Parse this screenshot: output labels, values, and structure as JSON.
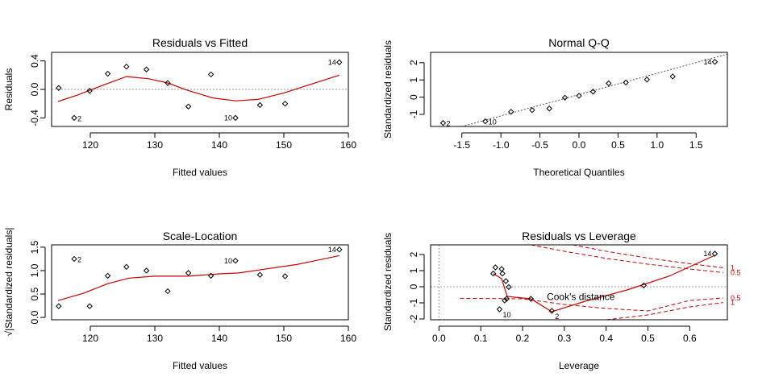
{
  "colors": {
    "smooth": "#cc0000",
    "ref": "#999999",
    "cook": "#cc0000",
    "point": "#000000"
  },
  "chart_data": [
    {
      "type": "scatter",
      "title": "Residuals vs Fitted",
      "xlabel": "Fitted values",
      "ylabel": "Residuals",
      "xlim": [
        114,
        160
      ],
      "ylim": [
        -0.52,
        0.52
      ],
      "xticks": [
        120,
        130,
        140,
        150,
        160
      ],
      "yticks": [
        -0.4,
        0.0,
        0.4
      ],
      "ytick_labels": [
        "-0.4",
        "0.0",
        "0.4"
      ],
      "refline": {
        "kind": "h",
        "value": 0
      },
      "points": [
        {
          "x": 115.1,
          "y": 0.02
        },
        {
          "x": 117.5,
          "y": -0.4
        },
        {
          "x": 119.9,
          "y": -0.02
        },
        {
          "x": 122.7,
          "y": 0.22
        },
        {
          "x": 125.6,
          "y": 0.32
        },
        {
          "x": 128.7,
          "y": 0.28
        },
        {
          "x": 132.0,
          "y": 0.09
        },
        {
          "x": 135.2,
          "y": -0.24
        },
        {
          "x": 138.7,
          "y": 0.21
        },
        {
          "x": 142.5,
          "y": -0.4
        },
        {
          "x": 146.3,
          "y": -0.22
        },
        {
          "x": 150.2,
          "y": -0.2
        },
        {
          "x": 158.6,
          "y": 0.38
        }
      ],
      "labels": [
        {
          "x": 117.5,
          "y": -0.4,
          "text": "2",
          "pos": "right"
        },
        {
          "x": 142.5,
          "y": -0.4,
          "text": "10",
          "pos": "left"
        },
        {
          "x": 158.6,
          "y": 0.38,
          "text": "14",
          "pos": "left"
        }
      ],
      "smooth": [
        [
          115,
          -0.17
        ],
        [
          118,
          -0.08
        ],
        [
          122,
          0.06
        ],
        [
          125.6,
          0.18
        ],
        [
          129,
          0.15
        ],
        [
          132,
          0.09
        ],
        [
          135,
          -0.01
        ],
        [
          139,
          -0.12
        ],
        [
          142.5,
          -0.16
        ],
        [
          146,
          -0.14
        ],
        [
          150,
          -0.05
        ],
        [
          158.6,
          0.2
        ]
      ]
    },
    {
      "type": "scatter",
      "title": "Normal Q-Q",
      "xlabel": "Theoretical Quantiles",
      "ylabel": "Standardized residuals",
      "xlim": [
        -1.9,
        1.9
      ],
      "ylim": [
        -1.7,
        2.6
      ],
      "xticks": [
        -1.5,
        -1.0,
        -0.5,
        0.0,
        0.5,
        1.0,
        1.5
      ],
      "xtick_labels": [
        "-1.5",
        "-1.0",
        "-0.5",
        "0.0",
        "0.5",
        "1.0",
        "1.5"
      ],
      "yticks": [
        -1,
        0,
        1,
        2
      ],
      "ytick_labels": [
        "-1",
        "0",
        "1",
        "2"
      ],
      "refline": {
        "kind": "line",
        "from": [
          -1.9,
          -2.2
        ],
        "to": [
          1.9,
          2.5
        ]
      },
      "points": [
        {
          "x": -1.74,
          "y": -1.5
        },
        {
          "x": -1.2,
          "y": -1.4
        },
        {
          "x": -0.87,
          "y": -0.85
        },
        {
          "x": -0.6,
          "y": -0.75
        },
        {
          "x": -0.38,
          "y": -0.66
        },
        {
          "x": -0.18,
          "y": -0.03
        },
        {
          "x": 0.0,
          "y": 0.08
        },
        {
          "x": 0.18,
          "y": 0.32
        },
        {
          "x": 0.38,
          "y": 0.8
        },
        {
          "x": 0.6,
          "y": 0.85
        },
        {
          "x": 0.87,
          "y": 1.02
        },
        {
          "x": 1.2,
          "y": 1.2
        },
        {
          "x": 1.74,
          "y": 2.05
        }
      ],
      "labels": [
        {
          "x": -1.74,
          "y": -1.5,
          "text": "2",
          "pos": "right"
        },
        {
          "x": -1.2,
          "y": -1.4,
          "text": "10",
          "pos": "right"
        },
        {
          "x": 1.74,
          "y": 2.05,
          "text": "14",
          "pos": "left"
        }
      ]
    },
    {
      "type": "scatter",
      "title": "Scale-Location",
      "xlabel": "Fitted values",
      "ylabel": "√|Standardized residuals|",
      "xlim": [
        114,
        160
      ],
      "ylim": [
        -0.05,
        1.55
      ],
      "xticks": [
        120,
        130,
        140,
        150,
        160
      ],
      "yticks": [
        0.0,
        0.5,
        1.0,
        1.5
      ],
      "ytick_labels": [
        "0.0",
        "0.5",
        "1.0",
        "1.5"
      ],
      "points": [
        {
          "x": 115.1,
          "y": 0.24
        },
        {
          "x": 117.5,
          "y": 1.25
        },
        {
          "x": 119.9,
          "y": 0.24
        },
        {
          "x": 122.7,
          "y": 0.89
        },
        {
          "x": 125.6,
          "y": 1.08
        },
        {
          "x": 128.7,
          "y": 1.0
        },
        {
          "x": 132.0,
          "y": 0.56
        },
        {
          "x": 135.2,
          "y": 0.95
        },
        {
          "x": 138.7,
          "y": 0.89
        },
        {
          "x": 142.5,
          "y": 1.21
        },
        {
          "x": 146.3,
          "y": 0.91
        },
        {
          "x": 150.2,
          "y": 0.88
        },
        {
          "x": 158.6,
          "y": 1.45
        }
      ],
      "labels": [
        {
          "x": 117.5,
          "y": 1.25,
          "text": "2",
          "pos": "right"
        },
        {
          "x": 142.5,
          "y": 1.21,
          "text": "10",
          "pos": "left"
        },
        {
          "x": 158.6,
          "y": 1.45,
          "text": "14",
          "pos": "left"
        }
      ],
      "smooth": [
        [
          115,
          0.36
        ],
        [
          119,
          0.52
        ],
        [
          122.7,
          0.72
        ],
        [
          126,
          0.84
        ],
        [
          130,
          0.88
        ],
        [
          135,
          0.88
        ],
        [
          140,
          0.93
        ],
        [
          143,
          0.95
        ],
        [
          147,
          1.03
        ],
        [
          152,
          1.13
        ],
        [
          158.6,
          1.32
        ]
      ]
    },
    {
      "type": "scatter",
      "title": "Residuals vs Leverage",
      "xlabel": "Leverage",
      "ylabel": "Standardized residuals",
      "xlim": [
        -0.02,
        0.69
      ],
      "ylim": [
        -2.05,
        2.6
      ],
      "xticks": [
        0.0,
        0.1,
        0.2,
        0.3,
        0.4,
        0.5,
        0.6
      ],
      "xtick_labels": [
        "0.0",
        "0.1",
        "0.2",
        "0.3",
        "0.4",
        "0.5",
        "0.6"
      ],
      "yticks": [
        -2,
        -1,
        0,
        1,
        2
      ],
      "ytick_labels": [
        "-2",
        "-1",
        "0",
        "1",
        "2"
      ],
      "refline": {
        "kind": "hv",
        "h": 0,
        "v": 0
      },
      "points": [
        {
          "x": 0.13,
          "y": 0.82
        },
        {
          "x": 0.135,
          "y": 1.2
        },
        {
          "x": 0.145,
          "y": -1.4
        },
        {
          "x": 0.15,
          "y": 1.1
        },
        {
          "x": 0.152,
          "y": 0.82
        },
        {
          "x": 0.157,
          "y": -0.85
        },
        {
          "x": 0.16,
          "y": 0.35
        },
        {
          "x": 0.162,
          "y": -0.75
        },
        {
          "x": 0.167,
          "y": -0.02
        },
        {
          "x": 0.22,
          "y": -0.75
        },
        {
          "x": 0.27,
          "y": -1.5
        },
        {
          "x": 0.49,
          "y": 0.08
        },
        {
          "x": 0.66,
          "y": 2.05
        }
      ],
      "labels": [
        {
          "x": 0.145,
          "y": -1.4,
          "text": "10",
          "pos": "below-right"
        },
        {
          "x": 0.27,
          "y": -1.5,
          "text": "2",
          "pos": "below-right"
        },
        {
          "x": 0.66,
          "y": 2.05,
          "text": "14",
          "pos": "left"
        }
      ],
      "smooth": [
        [
          0.13,
          0.82
        ],
        [
          0.15,
          0.5
        ],
        [
          0.163,
          -0.6
        ],
        [
          0.22,
          -0.75
        ],
        [
          0.27,
          -1.55
        ],
        [
          0.35,
          -0.9
        ],
        [
          0.45,
          -0.2
        ],
        [
          0.55,
          0.65
        ],
        [
          0.66,
          1.95
        ]
      ],
      "annotation": {
        "text": "Cook's distance",
        "x": 0.258,
        "y": -0.82
      },
      "cook_contours": [
        {
          "label": "1",
          "points": [
            [
              0.32,
              2.6
            ],
            [
              0.4,
              2.2
            ],
            [
              0.5,
              1.78
            ],
            [
              0.6,
              1.43
            ],
            [
              0.68,
              1.18
            ]
          ]
        },
        {
          "label": "0.5",
          "points": [
            [
              0.22,
              2.6
            ],
            [
              0.3,
              2.2
            ],
            [
              0.4,
              1.76
            ],
            [
              0.5,
              1.4
            ],
            [
              0.6,
              1.1
            ],
            [
              0.68,
              0.88
            ]
          ]
        },
        {
          "label": "0.5",
          "points": [
            [
              0.05,
              -0.72
            ],
            [
              0.2,
              -0.75
            ],
            [
              0.3,
              -1.1
            ],
            [
              0.4,
              -1.35
            ],
            [
              0.5,
              -1.5
            ],
            [
              0.6,
              -0.85
            ],
            [
              0.68,
              -0.7
            ]
          ]
        },
        {
          "label": "1",
          "points": [
            [
              0.4,
              -2.05
            ],
            [
              0.5,
              -1.75
            ],
            [
              0.6,
              -1.25
            ],
            [
              0.68,
              -0.98
            ]
          ]
        }
      ]
    }
  ]
}
